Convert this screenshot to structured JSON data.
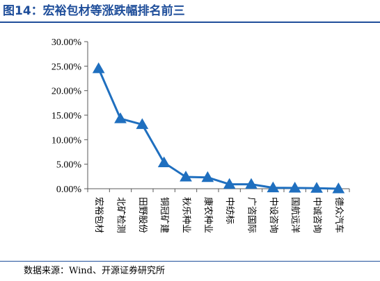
{
  "figure": {
    "title": "图14：宏裕包材等涨跌幅排名前三",
    "source": "数据来源：Wind、开源证券研究所"
  },
  "colors": {
    "accent": "#1f4e9a",
    "series": "#1f6fbf",
    "axis": "#595959"
  },
  "chart_data": {
    "type": "line",
    "title": "",
    "xlabel": "",
    "ylabel": "",
    "categories": [
      "宏裕包材",
      "北矿检测",
      "田野股份",
      "铜冠矿建",
      "秋乐种业",
      "康农种业",
      "中纺标",
      "广咨国际",
      "中设咨询",
      "国航远洋",
      "中诚咨询",
      "德众汽车"
    ],
    "series": [
      {
        "name": "",
        "values": [
          24.5,
          14.3,
          13.1,
          5.3,
          2.4,
          2.3,
          0.9,
          0.9,
          0.2,
          0.15,
          0.1,
          0.0
        ]
      }
    ],
    "ylim": [
      0,
      30
    ],
    "yticks": [
      "0.00%",
      "5.00%",
      "10.00%",
      "15.00%",
      "20.00%",
      "25.00%",
      "30.00%"
    ],
    "marker": "triangle",
    "grid": false,
    "legend": "none"
  }
}
